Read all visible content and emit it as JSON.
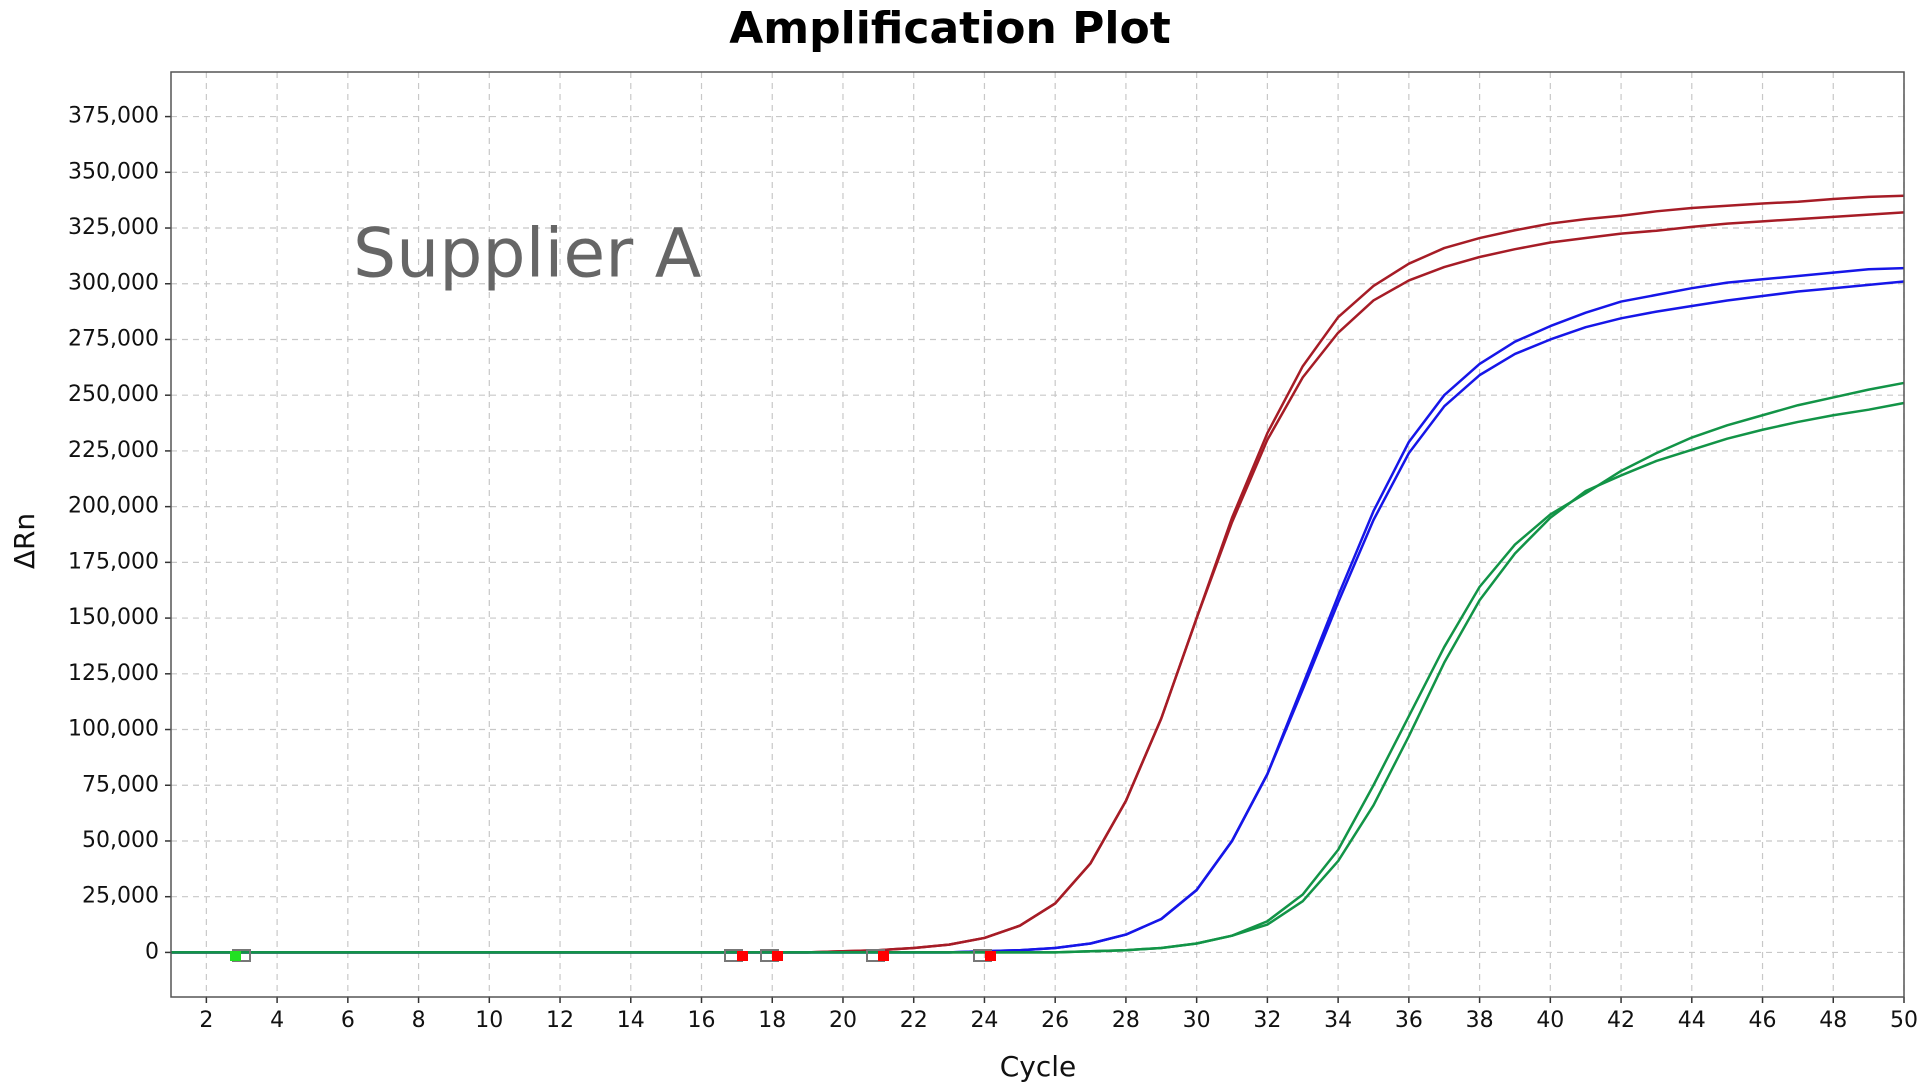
{
  "chart_data": {
    "type": "line",
    "title": "Amplification Plot",
    "annotation": "Supplier A",
    "x_label": "Cycle",
    "y_label": "ΔRn",
    "x": [
      1,
      2,
      3,
      4,
      5,
      6,
      7,
      8,
      9,
      10,
      11,
      12,
      13,
      14,
      15,
      16,
      17,
      18,
      19,
      20,
      21,
      22,
      23,
      24,
      25,
      26,
      27,
      28,
      29,
      30,
      31,
      32,
      33,
      34,
      35,
      36,
      37,
      38,
      39,
      40,
      41,
      42,
      43,
      44,
      45,
      46,
      47,
      48,
      49,
      50
    ],
    "series": [
      {
        "color": "#a61c26",
        "values": [
          0,
          0,
          0,
          0,
          0,
          0,
          0,
          0,
          0,
          0,
          0,
          0,
          0,
          0,
          0,
          0,
          0,
          0,
          0,
          500,
          1000,
          2000,
          3500,
          6500,
          12000,
          22000,
          40000,
          68000,
          105000,
          150000,
          195000,
          233000,
          263000,
          285000,
          299000,
          309000,
          316000,
          320500,
          324000,
          327000,
          329000,
          330500,
          332500,
          334000,
          335000,
          336000,
          336800,
          338000,
          339000,
          339500
        ]
      },
      {
        "color": "#a61c26",
        "values": [
          0,
          0,
          0,
          0,
          0,
          0,
          0,
          0,
          0,
          0,
          0,
          0,
          0,
          0,
          0,
          0,
          0,
          0,
          0,
          500,
          1000,
          2000,
          3500,
          6500,
          12000,
          22000,
          40000,
          68000,
          105000,
          150000,
          193000,
          230000,
          258000,
          278000,
          292500,
          301500,
          307500,
          312000,
          315500,
          318500,
          320500,
          322500,
          323800,
          325500,
          327000,
          328000,
          329000,
          330000,
          331000,
          332000
        ]
      },
      {
        "color": "#1616e8",
        "values": [
          0,
          0,
          0,
          0,
          0,
          0,
          0,
          0,
          0,
          0,
          0,
          0,
          0,
          0,
          0,
          0,
          0,
          0,
          0,
          0,
          0,
          0,
          0,
          500,
          1000,
          2000,
          4000,
          8000,
          15000,
          28000,
          50000,
          80000,
          120000,
          160000,
          198000,
          229000,
          250000,
          264000,
          274000,
          281000,
          287000,
          292000,
          295000,
          298000,
          300500,
          302000,
          303500,
          305000,
          306500,
          307000
        ]
      },
      {
        "color": "#1616e8",
        "values": [
          0,
          0,
          0,
          0,
          0,
          0,
          0,
          0,
          0,
          0,
          0,
          0,
          0,
          0,
          0,
          0,
          0,
          0,
          0,
          0,
          0,
          0,
          0,
          500,
          1000,
          2000,
          4000,
          8000,
          15000,
          28000,
          50000,
          80000,
          118000,
          157000,
          194000,
          224000,
          245000,
          259000,
          268500,
          275000,
          280500,
          284500,
          287500,
          290000,
          292500,
          294500,
          296500,
          298000,
          299500,
          301000
        ]
      },
      {
        "color": "#129447",
        "values": [
          0,
          0,
          0,
          0,
          0,
          0,
          0,
          0,
          0,
          0,
          0,
          0,
          0,
          0,
          0,
          0,
          0,
          0,
          0,
          0,
          0,
          0,
          0,
          0,
          0,
          0,
          500,
          1000,
          2000,
          4000,
          7500,
          14000,
          26000,
          46000,
          75000,
          106000,
          137000,
          164000,
          183000,
          196500,
          206000,
          216000,
          224000,
          231000,
          236500,
          241000,
          245500,
          249000,
          252500,
          255500
        ]
      },
      {
        "color": "#129447",
        "values": [
          0,
          0,
          0,
          0,
          0,
          0,
          0,
          0,
          0,
          0,
          0,
          0,
          0,
          0,
          0,
          0,
          0,
          0,
          0,
          0,
          0,
          0,
          0,
          0,
          0,
          0,
          500,
          1000,
          2000,
          4000,
          7500,
          12500,
          23000,
          41000,
          66000,
          97000,
          130000,
          158000,
          179000,
          195000,
          207000,
          214000,
          220500,
          225500,
          230500,
          234500,
          238000,
          241000,
          243500,
          246500
        ]
      }
    ],
    "xlim": [
      1,
      50
    ],
    "xticks": [
      2,
      4,
      6,
      8,
      10,
      12,
      14,
      16,
      18,
      20,
      22,
      24,
      26,
      28,
      30,
      32,
      34,
      36,
      38,
      40,
      42,
      44,
      46,
      48,
      50
    ],
    "ylim": [
      -20000,
      395000
    ],
    "yticks": [
      0,
      {
        "value": 25000,
        "label": "25,000"
      },
      {
        "value": 50000,
        "label": "50,000"
      },
      {
        "value": 75000,
        "label": "75,000"
      },
      {
        "value": 100000,
        "label": "100,000"
      },
      {
        "value": 125000,
        "label": "125,000"
      },
      {
        "value": 150000,
        "label": "150,000"
      },
      {
        "value": 175000,
        "label": "175,000"
      },
      {
        "value": 200000,
        "label": "200,000"
      },
      {
        "value": 225000,
        "label": "225,000"
      },
      {
        "value": 250000,
        "label": "250,000"
      },
      {
        "value": 275000,
        "label": "275,000"
      },
      {
        "value": 300000,
        "label": "300,000"
      },
      {
        "value": 325000,
        "label": "325,000"
      },
      {
        "value": 350000,
        "label": "350,000"
      },
      {
        "value": 375000,
        "label": "375,000"
      }
    ],
    "grid": true
  }
}
